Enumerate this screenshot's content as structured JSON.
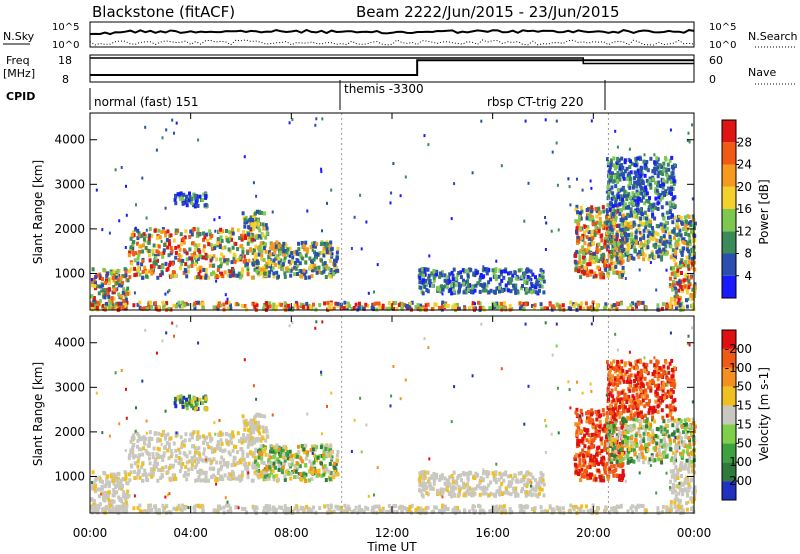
{
  "header": {
    "station": "Blackstone (fitACF)",
    "beam": "Beam 22",
    "date_range": "22/Jun/2015 - 23/Jun/2015"
  },
  "top_panels": {
    "nsky_label": "N.Sky",
    "nsky_ticks": [
      "10^5",
      "10^0"
    ],
    "nsearch_label": "N.Search",
    "freq_label_1": "Freq",
    "freq_label_2": "[MHz]",
    "freq_ticks": [
      "18",
      "8"
    ],
    "nave_label": "Nave",
    "nave_ticks": [
      "60",
      "0"
    ],
    "cpid_label": "CPID",
    "cpid_segments": [
      {
        "label": "normal (fast) 151",
        "start_hour": 0
      },
      {
        "label": "themis -3300",
        "start_hour": 10.0
      },
      {
        "label": "rbsp CT-trig 220",
        "start_hour": 20.6
      }
    ],
    "nave_step": {
      "before": 60,
      "after": 45,
      "at_hour": 19.6
    },
    "freq_step": {
      "before": 10,
      "after": 17,
      "at_hour": 13.0
    }
  },
  "chart_data": {
    "type": "heatmap",
    "x_axis": {
      "label": "Time UT",
      "range_hours": [
        0,
        24
      ],
      "tick_labels": [
        "00:00",
        "04:00",
        "08:00",
        "12:00",
        "16:00",
        "20:00",
        "00:00"
      ]
    },
    "panels": [
      {
        "name": "power",
        "ylabel": "Slant Range [km]",
        "ylim": [
          180,
          4600
        ],
        "yticks": [
          1000,
          2000,
          3000,
          4000
        ],
        "colorbar": {
          "label": "Power [dB]",
          "ticks": [
            "4",
            "8",
            "12",
            "16",
            "20",
            "24",
            "28"
          ],
          "colors": [
            "#1a1aff",
            "#2a4fb0",
            "#3a8a5a",
            "#7ec850",
            "#f4d02c",
            "#f59a1e",
            "#f05a14",
            "#e01414"
          ]
        }
      },
      {
        "name": "velocity",
        "ylabel": "Slant Range [km]",
        "ylim": [
          180,
          4600
        ],
        "yticks": [
          1000,
          2000,
          3000,
          4000
        ],
        "colorbar": {
          "label": "Velocity [m s-1]",
          "ticks": [
            "200",
            "100",
            "50",
            "15",
            "-15",
            "-50",
            "-100",
            "-200"
          ],
          "colors": [
            "#2030c0",
            "#2e7a3a",
            "#3fa040",
            "#7ed048",
            "#c8c8c0",
            "#f0c020",
            "#f59020",
            "#f05a14",
            "#e01010"
          ]
        }
      }
    ],
    "scatter_regions": [
      {
        "t0": 0.0,
        "t1": 1.5,
        "r0": 200,
        "r1": 1100,
        "power": "strong",
        "velocity": "low"
      },
      {
        "t0": 1.5,
        "t1": 6.5,
        "r0": 900,
        "r1": 2000,
        "power": "strong",
        "velocity": "low"
      },
      {
        "t0": 3.3,
        "t1": 4.6,
        "r0": 2500,
        "r1": 2800,
        "power": "weak",
        "velocity": "positive"
      },
      {
        "t0": 6.0,
        "t1": 7.0,
        "r0": 1800,
        "r1": 2400,
        "power": "medium",
        "velocity": "low"
      },
      {
        "t0": 6.5,
        "t1": 9.8,
        "r0": 900,
        "r1": 1700,
        "power": "medium",
        "velocity": "mixed"
      },
      {
        "t0": 13.0,
        "t1": 18.0,
        "r0": 550,
        "r1": 1100,
        "power": "weak",
        "velocity": "low"
      },
      {
        "t0": 19.2,
        "t1": 21.2,
        "r0": 900,
        "r1": 2500,
        "power": "strong",
        "velocity": "negative"
      },
      {
        "t0": 20.5,
        "t1": 24.0,
        "r0": 1300,
        "r1": 2300,
        "power": "medium",
        "velocity": "mixed"
      },
      {
        "t0": 20.5,
        "t1": 23.2,
        "r0": 2300,
        "r1": 3600,
        "power": "weak",
        "velocity": "negative"
      },
      {
        "t0": 23.0,
        "t1": 24.0,
        "r0": 400,
        "r1": 1300,
        "power": "strong",
        "velocity": "low"
      },
      {
        "t0": 0.0,
        "t1": 24.0,
        "r0": 180,
        "r1": 350,
        "power": "ground",
        "velocity": "low"
      }
    ]
  }
}
